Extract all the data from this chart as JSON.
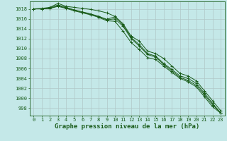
{
  "title": "Graphe pression niveau de la mer (hPa)",
  "background_color": "#c4e8e8",
  "grid_color": "#b0c8c8",
  "line_color": "#1a5c1a",
  "x_values": [
    0,
    1,
    2,
    3,
    4,
    5,
    6,
    7,
    8,
    9,
    10,
    11,
    12,
    13,
    14,
    15,
    16,
    17,
    18,
    19,
    20,
    21,
    22,
    23
  ],
  "series": [
    [
      1018.0,
      1018.1,
      1018.3,
      1019.1,
      1018.5,
      1018.3,
      1018.1,
      1017.9,
      1017.6,
      1017.2,
      1016.5,
      1015.0,
      1012.5,
      1011.5,
      1009.5,
      1009.0,
      1008.0,
      1006.5,
      1005.0,
      1004.5,
      1003.5,
      1001.5,
      999.5,
      997.5
    ],
    [
      1018.0,
      1018.0,
      1018.2,
      1018.8,
      1018.3,
      1017.8,
      1017.4,
      1017.0,
      1016.5,
      1015.9,
      1016.4,
      1014.8,
      1012.2,
      1010.8,
      1009.0,
      1008.5,
      1007.0,
      1005.8,
      1004.5,
      1004.0,
      1003.0,
      1001.0,
      999.0,
      997.0
    ],
    [
      1018.0,
      1018.0,
      1018.1,
      1018.5,
      1018.1,
      1017.6,
      1017.2,
      1016.8,
      1016.3,
      1015.6,
      1015.5,
      1013.5,
      1011.2,
      1009.8,
      1008.2,
      1007.8,
      1006.5,
      1005.2,
      1004.0,
      1003.3,
      1002.3,
      1000.3,
      998.3,
      997.0
    ],
    [
      1018.0,
      1018.0,
      1018.1,
      1018.6,
      1018.2,
      1017.7,
      1017.3,
      1016.9,
      1016.4,
      1015.8,
      1016.0,
      1014.5,
      1012.0,
      1010.5,
      1008.8,
      1008.3,
      1006.8,
      1005.5,
      1004.2,
      1003.6,
      1002.6,
      1000.7,
      998.7,
      997.1
    ]
  ],
  "ylim": [
    996.5,
    1019.5
  ],
  "ytick_positions": [
    998,
    1000,
    1002,
    1004,
    1006,
    1008,
    1010,
    1012,
    1014,
    1016,
    1018
  ],
  "ytick_labels": [
    "998",
    "1000",
    "1002",
    "1004",
    "1006",
    "1008",
    "1010",
    "1012",
    "1014",
    "1016",
    "1018"
  ],
  "xtick_labels": [
    "0",
    "1",
    "2",
    "3",
    "4",
    "5",
    "6",
    "7",
    "8",
    "9",
    "10",
    "11",
    "12",
    "13",
    "14",
    "15",
    "16",
    "17",
    "18",
    "19",
    "20",
    "21",
    "22",
    "23"
  ],
  "marker": "+",
  "marker_size": 3.5,
  "line_width": 0.7,
  "title_fontsize": 6.5,
  "tick_fontsize": 5.0
}
